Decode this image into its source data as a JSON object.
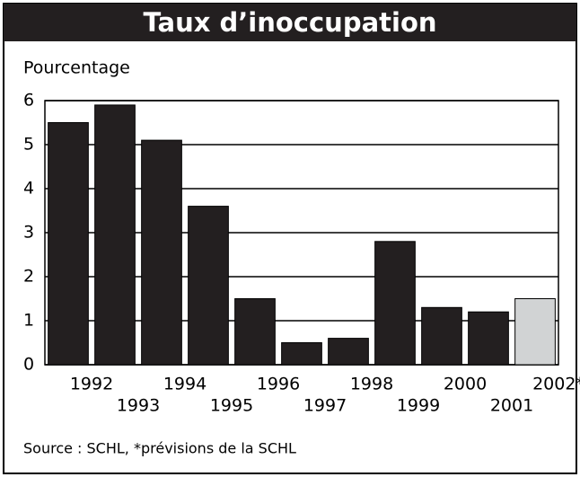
{
  "chart_data": {
    "type": "bar",
    "title": "Taux d’inoccupation",
    "y_label": "Pourcentage",
    "categories": [
      "1992",
      "1993",
      "1994",
      "1995",
      "1996",
      "1997",
      "1998",
      "1999",
      "2000",
      "2001",
      "2002*"
    ],
    "values": [
      5.5,
      5.9,
      5.1,
      3.6,
      1.5,
      0.5,
      0.6,
      2.8,
      1.3,
      1.2,
      1.5
    ],
    "colors": [
      "#231f20",
      "#231f20",
      "#231f20",
      "#231f20",
      "#231f20",
      "#231f20",
      "#231f20",
      "#231f20",
      "#231f20",
      "#231f20",
      "#d1d3d4"
    ],
    "ylim": [
      0,
      6
    ],
    "yticks": [
      0,
      1,
      2,
      3,
      4,
      5,
      6
    ],
    "grid": true,
    "source": "Source : SCHL, *prévisions de la SCHL"
  }
}
